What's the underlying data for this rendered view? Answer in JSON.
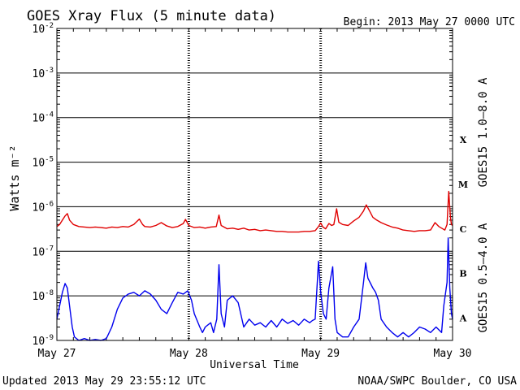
{
  "header": {
    "title": "GOES Xray Flux (5 minute data)",
    "begin": "Begin:  2013 May 27 0000 UTC"
  },
  "footer": {
    "updated": "Updated 2013 May 29 23:55:12 UTC",
    "credit": "NOAA/SWPC Boulder, CO USA"
  },
  "colors": {
    "long": "#e00000",
    "short": "#0000ee",
    "axis": "#000000"
  },
  "chart_data": {
    "type": "line",
    "title": "GOES Xray Flux (5 minute data)",
    "xlabel": "Universal Time",
    "ylabel": "Watts m⁻²",
    "y_scale": "log",
    "ylim": [
      1e-09,
      0.01
    ],
    "xlim": [
      0,
      72
    ],
    "x_unit": "hours since 2013 May 27 0000 UTC",
    "x_ticks": [
      {
        "x": 0,
        "label": "May 27"
      },
      {
        "x": 24,
        "label": "May 28"
      },
      {
        "x": 48,
        "label": "May 29"
      },
      {
        "x": 72,
        "label": "May 30"
      }
    ],
    "y_ticks": [
      {
        "exp": -2,
        "label": "10",
        "sup": "-2"
      },
      {
        "exp": -3,
        "label": "10",
        "sup": "-3"
      },
      {
        "exp": -4,
        "label": "10",
        "sup": "-4"
      },
      {
        "exp": -5,
        "label": "10",
        "sup": "-5"
      },
      {
        "exp": -6,
        "label": "10",
        "sup": "-6"
      },
      {
        "exp": -7,
        "label": "10",
        "sup": "-7"
      },
      {
        "exp": -8,
        "label": "10",
        "sup": "-8"
      },
      {
        "exp": -9,
        "label": "10",
        "sup": "-9"
      }
    ],
    "flare_classes": [
      {
        "label": "X",
        "exp": -4
      },
      {
        "label": "M",
        "exp": -5
      },
      {
        "label": "C",
        "exp": -6
      },
      {
        "label": "B",
        "exp": -7
      },
      {
        "label": "A",
        "exp": -8
      }
    ],
    "grid": true,
    "series": [
      {
        "name": "GOES15 1.0–8.0 A",
        "color": "#e00000",
        "points": [
          [
            0,
            3.6e-07
          ],
          [
            0.5,
            4e-07
          ],
          [
            1.0,
            5e-07
          ],
          [
            1.5,
            6.2e-07
          ],
          [
            1.9,
            7e-07
          ],
          [
            2.3,
            5e-07
          ],
          [
            3,
            4e-07
          ],
          [
            4,
            3.6e-07
          ],
          [
            5,
            3.5e-07
          ],
          [
            6,
            3.4e-07
          ],
          [
            7,
            3.5e-07
          ],
          [
            8,
            3.4e-07
          ],
          [
            9,
            3.3e-07
          ],
          [
            10,
            3.5e-07
          ],
          [
            11,
            3.4e-07
          ],
          [
            12,
            3.6e-07
          ],
          [
            13,
            3.5e-07
          ],
          [
            14,
            4e-07
          ],
          [
            15,
            5.3e-07
          ],
          [
            15.6,
            4e-07
          ],
          [
            16,
            3.6e-07
          ],
          [
            17,
            3.5e-07
          ],
          [
            18,
            3.8e-07
          ],
          [
            19,
            4.4e-07
          ],
          [
            20,
            3.7e-07
          ],
          [
            21,
            3.4e-07
          ],
          [
            22,
            3.6e-07
          ],
          [
            23,
            4.2e-07
          ],
          [
            23.4,
            5.2e-07
          ],
          [
            24,
            3.8e-07
          ],
          [
            25,
            3.4e-07
          ],
          [
            26,
            3.5e-07
          ],
          [
            27,
            3.3e-07
          ],
          [
            28,
            3.5e-07
          ],
          [
            29.0,
            3.6e-07
          ],
          [
            29.5,
            6.5e-07
          ],
          [
            29.9,
            3.8e-07
          ],
          [
            31,
            3.2e-07
          ],
          [
            32,
            3.3e-07
          ],
          [
            33,
            3.1e-07
          ],
          [
            34,
            3.3e-07
          ],
          [
            35,
            3e-07
          ],
          [
            36,
            3.1e-07
          ],
          [
            37,
            2.9e-07
          ],
          [
            38,
            3e-07
          ],
          [
            39,
            2.9e-07
          ],
          [
            40,
            2.8e-07
          ],
          [
            41,
            2.8e-07
          ],
          [
            42,
            2.7e-07
          ],
          [
            43,
            2.7e-07
          ],
          [
            44,
            2.7e-07
          ],
          [
            45,
            2.8e-07
          ],
          [
            46,
            2.8e-07
          ],
          [
            47,
            2.9e-07
          ],
          [
            47.6,
            3.6e-07
          ],
          [
            48,
            4.3e-07
          ],
          [
            48.4,
            3.5e-07
          ],
          [
            48.9,
            3.2e-07
          ],
          [
            49.5,
            4.2e-07
          ],
          [
            50,
            3.8e-07
          ],
          [
            50.4,
            4e-07
          ],
          [
            50.9,
            9e-07
          ],
          [
            51.3,
            4.5e-07
          ],
          [
            52,
            4e-07
          ],
          [
            53,
            3.8e-07
          ],
          [
            54,
            4.8e-07
          ],
          [
            55,
            5.8e-07
          ],
          [
            55.8,
            8e-07
          ],
          [
            56.3,
            1.1e-06
          ],
          [
            56.9,
            8e-07
          ],
          [
            57.5,
            5.8e-07
          ],
          [
            58.2,
            5e-07
          ],
          [
            59,
            4.4e-07
          ],
          [
            60,
            3.9e-07
          ],
          [
            61,
            3.5e-07
          ],
          [
            62,
            3.3e-07
          ],
          [
            63,
            3e-07
          ],
          [
            64,
            2.9e-07
          ],
          [
            65,
            2.8e-07
          ],
          [
            66,
            2.9e-07
          ],
          [
            67,
            2.9e-07
          ],
          [
            68,
            3e-07
          ],
          [
            68.8,
            4.4e-07
          ],
          [
            69.5,
            3.6e-07
          ],
          [
            70,
            3.3e-07
          ],
          [
            70.6,
            3e-07
          ],
          [
            71,
            4e-07
          ],
          [
            71.3,
            2.2e-06
          ],
          [
            71.6,
            6e-07
          ],
          [
            71.8,
            4e-07
          ],
          [
            72,
            3.8e-07
          ]
        ]
      },
      {
        "name": "GOES15 0.5–4.0 A",
        "color": "#0000ee",
        "points": [
          [
            0,
            3e-09
          ],
          [
            0.5,
            6e-09
          ],
          [
            1.0,
            1.2e-08
          ],
          [
            1.5,
            1.9e-08
          ],
          [
            1.9,
            1.5e-08
          ],
          [
            2.3,
            6e-09
          ],
          [
            2.8,
            2e-09
          ],
          [
            3.2,
            1.2e-09
          ],
          [
            4,
            1e-09
          ],
          [
            5,
            1.1e-09
          ],
          [
            6,
            1e-09
          ],
          [
            7,
            1.05e-09
          ],
          [
            8,
            1e-09
          ],
          [
            9,
            1.1e-09
          ],
          [
            10,
            2e-09
          ],
          [
            11,
            5e-09
          ],
          [
            12,
            9e-09
          ],
          [
            13,
            1.1e-08
          ],
          [
            14,
            1.2e-08
          ],
          [
            15,
            1e-08
          ],
          [
            16,
            1.3e-08
          ],
          [
            17,
            1.1e-08
          ],
          [
            18,
            8e-09
          ],
          [
            19,
            5e-09
          ],
          [
            20,
            4e-09
          ],
          [
            21,
            7e-09
          ],
          [
            22,
            1.2e-08
          ],
          [
            23,
            1.1e-08
          ],
          [
            23.8,
            1.3e-08
          ],
          [
            24.5,
            8e-09
          ],
          [
            25,
            4e-09
          ],
          [
            26,
            2e-09
          ],
          [
            26.5,
            1.5e-09
          ],
          [
            27,
            2e-09
          ],
          [
            28,
            2.5e-09
          ],
          [
            28.5,
            1.5e-09
          ],
          [
            29.1,
            3e-09
          ],
          [
            29.5,
            5e-08
          ],
          [
            29.9,
            4e-09
          ],
          [
            30.5,
            2e-09
          ],
          [
            31,
            8e-09
          ],
          [
            32,
            1e-08
          ],
          [
            33,
            7e-09
          ],
          [
            34,
            2e-09
          ],
          [
            35,
            3e-09
          ],
          [
            36,
            2.2e-09
          ],
          [
            37,
            2.5e-09
          ],
          [
            38,
            2e-09
          ],
          [
            39,
            2.8e-09
          ],
          [
            40,
            2e-09
          ],
          [
            41,
            3e-09
          ],
          [
            42,
            2.4e-09
          ],
          [
            43,
            2.8e-09
          ],
          [
            44,
            2.2e-09
          ],
          [
            45,
            3e-09
          ],
          [
            46,
            2.5e-09
          ],
          [
            46.5,
            2.8e-09
          ],
          [
            47,
            3e-09
          ],
          [
            47.6,
            6e-08
          ],
          [
            48,
            1.2e-08
          ],
          [
            48.5,
            4e-09
          ],
          [
            49,
            3e-09
          ],
          [
            49.5,
            1.5e-08
          ],
          [
            50.2,
            4.5e-08
          ],
          [
            50.6,
            3e-09
          ],
          [
            51,
            1.5e-09
          ],
          [
            52,
            1.2e-09
          ],
          [
            53,
            1.2e-09
          ],
          [
            54,
            2e-09
          ],
          [
            55,
            3e-09
          ],
          [
            55.8,
            2e-08
          ],
          [
            56.2,
            5.5e-08
          ],
          [
            56.6,
            2.5e-08
          ],
          [
            57.5,
            1.5e-08
          ],
          [
            58,
            1.2e-08
          ],
          [
            58.5,
            8e-09
          ],
          [
            59,
            3e-09
          ],
          [
            60,
            2e-09
          ],
          [
            61,
            1.5e-09
          ],
          [
            62,
            1.2e-09
          ],
          [
            63,
            1.5e-09
          ],
          [
            64,
            1.2e-09
          ],
          [
            65,
            1.5e-09
          ],
          [
            66,
            2e-09
          ],
          [
            67,
            1.8e-09
          ],
          [
            68,
            1.5e-09
          ],
          [
            69,
            2e-09
          ],
          [
            70,
            1.5e-09
          ],
          [
            70.4,
            6e-09
          ],
          [
            71.0,
            2e-08
          ],
          [
            71.2,
            2e-07
          ],
          [
            71.5,
            1.5e-08
          ],
          [
            71.8,
            4e-09
          ],
          [
            72,
            3e-09
          ]
        ]
      }
    ]
  }
}
